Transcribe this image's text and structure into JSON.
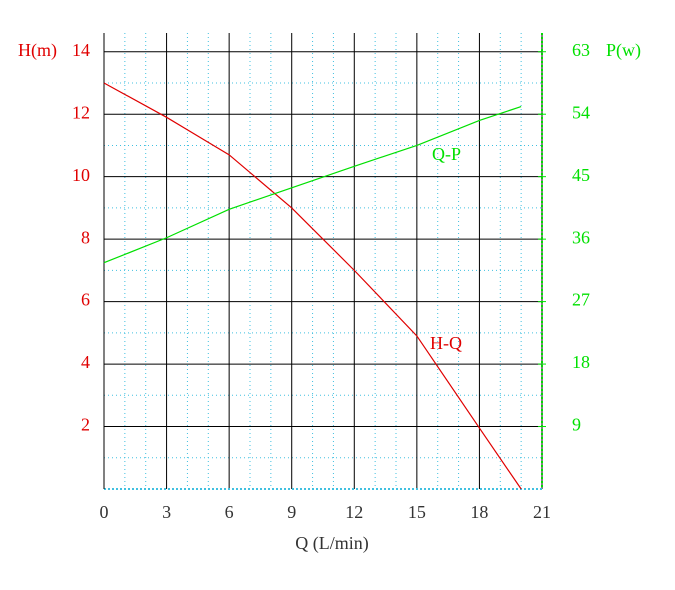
{
  "chart_data": {
    "type": "line",
    "y_label": "H(m)",
    "y2_label": "P(w)",
    "x_label": "Q (L/min)",
    "x": [
      0,
      3,
      6,
      9,
      12,
      15,
      18,
      20
    ],
    "series": [
      {
        "name": "H-Q",
        "color": "#e00000",
        "values": [
          13.0,
          11.9,
          10.7,
          9.0,
          7.0,
          4.9,
          1.95,
          0
        ]
      },
      {
        "name": "Q-P",
        "color": "#00e000",
        "axis": "y2",
        "values": [
          32.6,
          36.2,
          40.3,
          43.4,
          46.5,
          49.5,
          53.1,
          55.1
        ]
      }
    ],
    "xlim": [
      0,
      21
    ],
    "xticks": [
      0,
      3,
      6,
      9,
      12,
      15,
      18,
      21
    ],
    "ylim": [
      0,
      14.6
    ],
    "yticks": [
      2,
      4,
      6,
      8,
      10,
      12,
      14
    ],
    "y2lim": [
      0,
      65.7
    ],
    "y2ticks": [
      9,
      18,
      27,
      36,
      45,
      54,
      63
    ],
    "grid": true
  }
}
